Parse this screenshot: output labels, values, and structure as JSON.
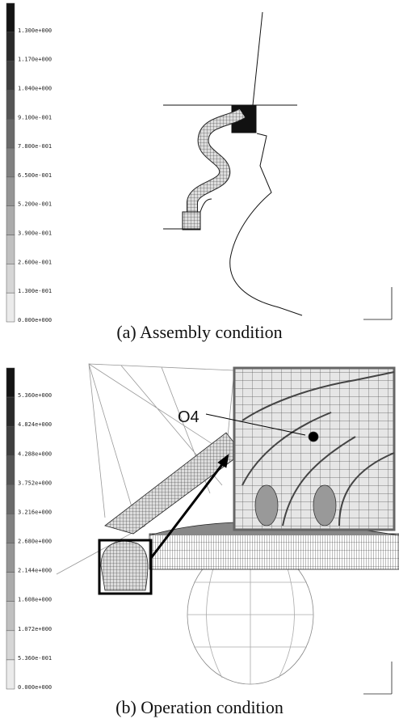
{
  "panel_a": {
    "legend": [
      "1.300e+000",
      "1.170e+000",
      "1.040e+000",
      "9.100e-001",
      "7.800e-001",
      "6.500e-001",
      "5.200e-001",
      "3.900e-001",
      "2.600e-001",
      "1.300e-001",
      "0.000e+000"
    ],
    "caption": "(a)  Assembly  condition"
  },
  "panel_b": {
    "legend": [
      "5.360e+000",
      "4.824e+000",
      "4.288e+000",
      "3.752e+000",
      "3.216e+000",
      "2.680e+000",
      "2.144e+000",
      "1.608e+000",
      "1.072e+000",
      "5.360e-001",
      "0.000e+000"
    ],
    "caption": "(b)  Operation  condition",
    "annotation": "O4"
  }
}
